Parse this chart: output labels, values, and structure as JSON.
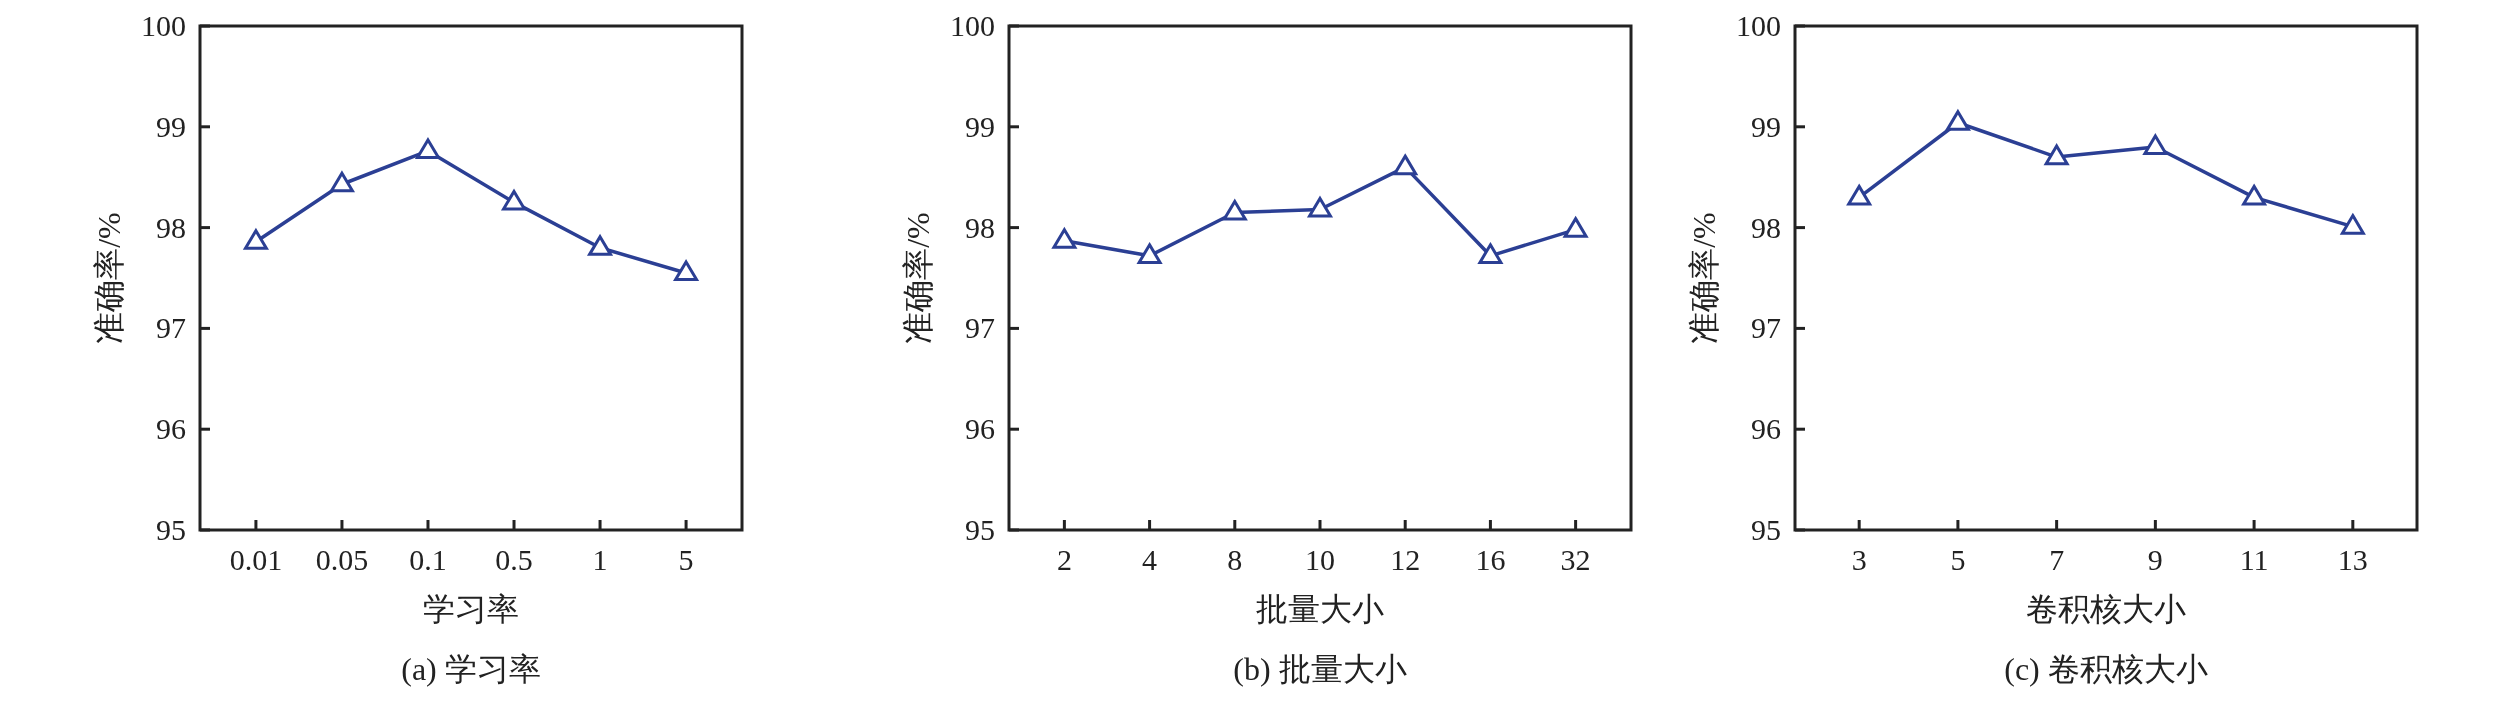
{
  "chart_data": [
    {
      "type": "line",
      "title": "(a) 学习率",
      "xlabel": "学习率",
      "ylabel": "准确率/%",
      "categories": [
        "0.01",
        "0.05",
        "0.1",
        "0.5",
        "1",
        "5"
      ],
      "ylim": [
        95,
        100
      ],
      "yticks": [
        95,
        96,
        97,
        98,
        99,
        100
      ],
      "marker": "triangle",
      "series": [
        {
          "color": "#2b3f94",
          "values": [
            97.86,
            98.43,
            98.76,
            98.25,
            97.8,
            97.55
          ]
        }
      ]
    },
    {
      "type": "line",
      "title": "(b) 批量大小",
      "xlabel": "批量大小",
      "ylabel": "准确率/%",
      "categories": [
        "2",
        "4",
        "8",
        "10",
        "12",
        "16",
        "32"
      ],
      "ylim": [
        95,
        100
      ],
      "yticks": [
        95,
        96,
        97,
        98,
        99,
        100
      ],
      "marker": "triangle",
      "series": [
        {
          "color": "#2b3f94",
          "values": [
            97.87,
            97.72,
            98.15,
            98.18,
            98.6,
            97.72,
            97.98
          ]
        }
      ]
    },
    {
      "type": "line",
      "title": "(c) 卷积核大小",
      "xlabel": "卷积核大小",
      "ylabel": "准确率/%",
      "categories": [
        "3",
        "5",
        "7",
        "9",
        "11",
        "13"
      ],
      "ylim": [
        95,
        100
      ],
      "yticks": [
        95,
        96,
        97,
        98,
        99,
        100
      ],
      "marker": "triangle",
      "series": [
        {
          "color": "#2b3f94",
          "values": [
            98.3,
            99.04,
            98.7,
            98.8,
            98.3,
            98.01
          ]
        }
      ]
    }
  ]
}
